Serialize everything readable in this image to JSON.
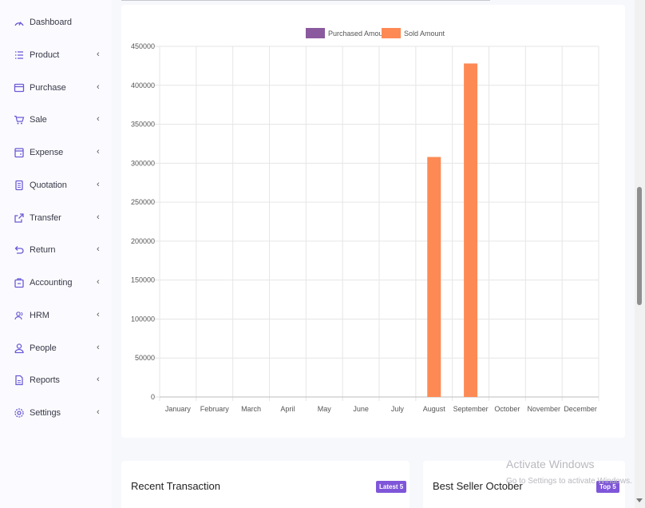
{
  "sidebar": {
    "items": [
      {
        "label": "Dashboard",
        "icon": "gauge-icon",
        "has_chevron": false
      },
      {
        "label": "Product",
        "icon": "list-icon",
        "has_chevron": true
      },
      {
        "label": "Purchase",
        "icon": "card-icon",
        "has_chevron": true
      },
      {
        "label": "Sale",
        "icon": "cart-icon",
        "has_chevron": true
      },
      {
        "label": "Expense",
        "icon": "wallet-icon",
        "has_chevron": true
      },
      {
        "label": "Quotation",
        "icon": "document-icon",
        "has_chevron": true
      },
      {
        "label": "Transfer",
        "icon": "share-icon",
        "has_chevron": true
      },
      {
        "label": "Return",
        "icon": "undo-icon",
        "has_chevron": true
      },
      {
        "label": "Accounting",
        "icon": "briefcase-icon",
        "has_chevron": true
      },
      {
        "label": "HRM",
        "icon": "users-icon",
        "has_chevron": true
      },
      {
        "label": "People",
        "icon": "user-icon",
        "has_chevron": true
      },
      {
        "label": "Reports",
        "icon": "file-icon",
        "has_chevron": true
      },
      {
        "label": "Settings",
        "icon": "gear-icon",
        "has_chevron": true
      }
    ],
    "chevron": "‹"
  },
  "colors": {
    "accent": "#7f56d9",
    "purchased": "#8b5a9e",
    "sold": "#fd8a55"
  },
  "chart_data": {
    "type": "bar",
    "categories": [
      "January",
      "February",
      "March",
      "April",
      "May",
      "June",
      "July",
      "August",
      "September",
      "October",
      "November",
      "December"
    ],
    "series": [
      {
        "name": "Purchased Amount",
        "values": [
          0,
          0,
          0,
          0,
          0,
          0,
          0,
          0,
          0,
          0,
          0,
          0
        ]
      },
      {
        "name": "Sold Amount",
        "values": [
          0,
          0,
          0,
          0,
          0,
          0,
          0,
          308000,
          428000,
          0,
          0,
          0
        ]
      }
    ],
    "yticks": [
      0,
      50000,
      100000,
      150000,
      200000,
      250000,
      300000,
      350000,
      400000,
      450000
    ],
    "ylim": [
      0,
      450000
    ],
    "title": "",
    "xlabel": "",
    "ylabel": "",
    "grid": true,
    "legend": "top-center"
  },
  "cards": {
    "recent_transaction": {
      "title": "Recent Transaction",
      "badge": "Latest 5"
    },
    "best_seller": {
      "title": "Best Seller October",
      "badge": "Top 5"
    }
  },
  "watermark": {
    "line1": "Activate Windows",
    "line2": "Go to Settings to activate Windows."
  }
}
